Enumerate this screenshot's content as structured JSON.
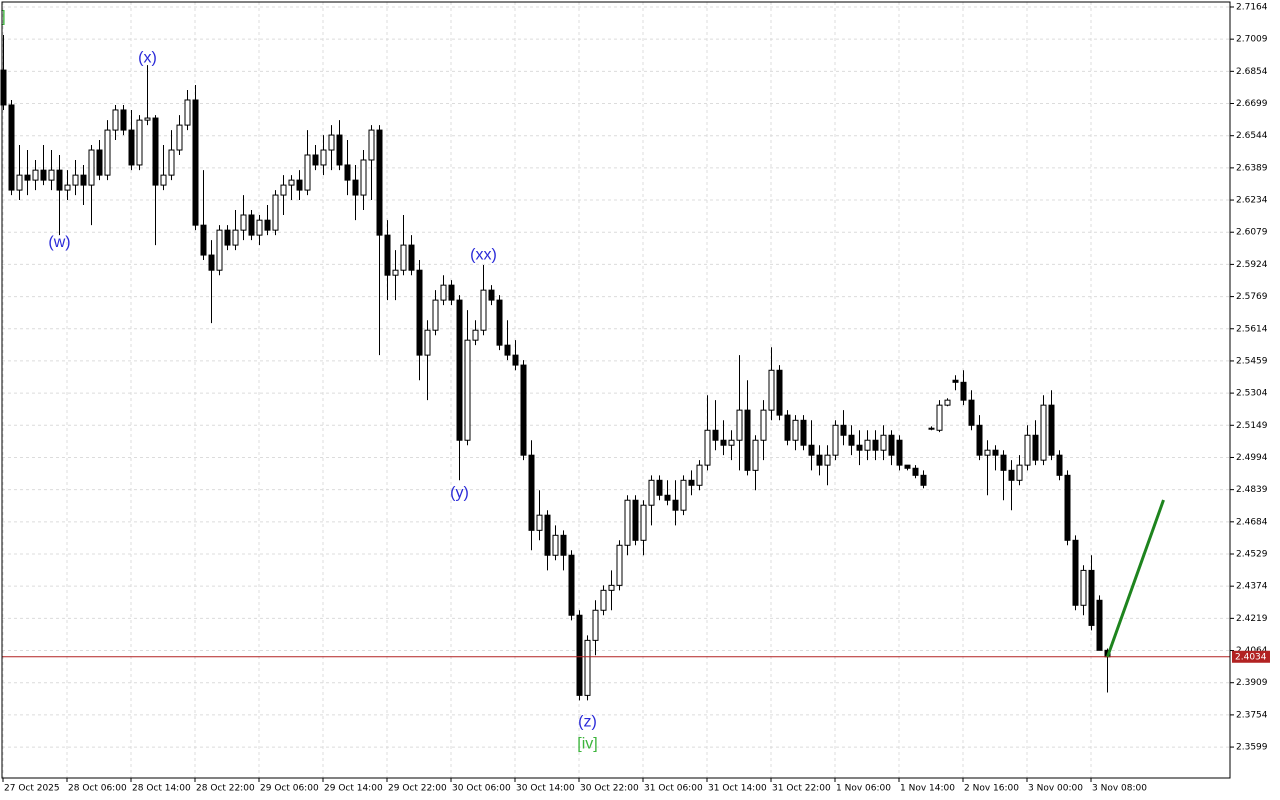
{
  "chart_data": {
    "type": "candlestick",
    "categories": [
      "27 Oct 2025",
      null,
      null,
      null,
      null,
      null,
      null,
      null,
      "28 Oct 06:00",
      null,
      null,
      null,
      null,
      null,
      null,
      null,
      "28 Oct 14:00",
      null,
      null,
      null,
      null,
      null,
      null,
      null,
      "28 Oct 22:00",
      null,
      null,
      null,
      null,
      null,
      null,
      null,
      "29 Oct 06:00",
      null,
      null,
      null,
      null,
      null,
      null,
      null,
      "29 Oct 14:00",
      null,
      null,
      null,
      null,
      null,
      null,
      null,
      "29 Oct 22:00",
      null,
      null,
      null,
      null,
      null,
      null,
      null,
      "30 Oct 06:00",
      null,
      null,
      null,
      null,
      null,
      null,
      null,
      "30 Oct 14:00",
      null,
      null,
      null,
      null,
      null,
      null,
      null,
      "30 Oct 22:00",
      null,
      null,
      null,
      null,
      null,
      null,
      null,
      "31 Oct 06:00",
      null,
      null,
      null,
      null,
      null,
      null,
      null,
      "31 Oct 14:00",
      null,
      null,
      null,
      null,
      null,
      null,
      null,
      "31 Oct 22:00",
      null,
      null,
      null,
      null,
      null,
      null,
      null,
      "1 Nov 06:00",
      null,
      null,
      null,
      null,
      null,
      null,
      null,
      "1 Nov 14:00",
      null,
      null,
      null,
      null,
      null,
      null,
      null,
      "2 Nov 16:00",
      null,
      null,
      null,
      null,
      null,
      null,
      null,
      "3 Nov 00:00",
      null,
      null,
      null,
      null,
      null,
      null,
      null,
      "3 Nov 08:00",
      null,
      null
    ],
    "open": [
      2.686,
      2.6692,
      2.6282,
      2.6354,
      2.633,
      2.6378,
      2.633,
      2.6378,
      2.6282,
      2.6306,
      2.6354,
      2.6306,
      2.6475,
      2.6354,
      2.6571,
      2.6668,
      2.6571,
      2.6403,
      2.6619,
      2.6629,
      2.6306,
      2.6354,
      2.6475,
      2.6595,
      2.6716,
      2.6113,
      2.5969,
      2.5896,
      2.6089,
      2.6017,
      2.6089,
      2.6162,
      2.6065,
      2.6137,
      2.6089,
      2.6258,
      2.6306,
      2.633,
      2.6282,
      2.6451,
      2.6403,
      2.6475,
      2.6547,
      2.6403,
      2.633,
      2.6258,
      2.6427,
      2.6571,
      2.6065,
      2.5872,
      2.5896,
      2.6017,
      2.5896,
      2.5487,
      2.5607,
      2.5752,
      2.5824,
      2.5752,
      2.5077,
      2.5559,
      2.5607,
      2.58,
      2.5752,
      2.5535,
      2.5487,
      2.5439,
      2.5005,
      2.4643,
      2.4716,
      2.4523,
      2.4619,
      2.4523,
      2.4234,
      2.3848,
      2.4113,
      2.4258,
      2.4354,
      2.4378,
      2.4571,
      2.4788,
      2.4595,
      2.4764,
      2.4884,
      2.4812,
      2.4788,
      2.474,
      2.4884,
      2.486,
      2.4957,
      2.5125,
      2.5077,
      2.5053,
      2.5077,
      2.5222,
      2.4932,
      2.5077,
      2.5222,
      2.5414,
      2.5198,
      2.5077,
      2.5173,
      2.5053,
      2.5005,
      2.4957,
      2.5005,
      2.5149,
      2.5101,
      2.5053,
      2.5029,
      2.5077,
      2.5029,
      2.5101,
      2.5077,
      2.4957,
      2.4942,
      2.4908,
      2.5135,
      2.5125,
      2.5246,
      2.5366,
      2.5356,
      2.527,
      2.5149,
      2.5005,
      2.5029,
      2.5005,
      2.4932,
      2.4884,
      2.4957,
      2.5101,
      2.4981,
      2.5246,
      2.5005,
      2.4908,
      2.4595,
      2.4282,
      2.445,
      2.4306,
      2.4065
    ],
    "high": [
      2.7029,
      2.6716,
      2.6499,
      2.6475,
      2.6427,
      2.6499,
      2.6475,
      2.6451,
      2.6378,
      2.6427,
      2.6403,
      2.6499,
      2.6523,
      2.6619,
      2.6692,
      2.6692,
      2.6668,
      2.6643,
      2.6884,
      2.6643,
      2.6499,
      2.6571,
      2.6643,
      2.6764,
      2.6788,
      2.6378,
      2.6041,
      2.6113,
      2.6113,
      2.6186,
      2.6258,
      2.6186,
      2.6162,
      2.621,
      2.6282,
      2.6354,
      2.6354,
      2.6378,
      2.6571,
      2.6499,
      2.6547,
      2.6595,
      2.6619,
      2.6523,
      2.6403,
      2.6475,
      2.6595,
      2.6595,
      2.6137,
      2.5993,
      2.6162,
      2.6065,
      2.5945,
      2.5655,
      2.58,
      2.5872,
      2.5848,
      2.5776,
      2.5704,
      2.5655,
      2.5921,
      2.5824,
      2.5776,
      2.5655,
      2.5559,
      2.5463,
      2.5077,
      2.4836,
      2.474,
      2.4667,
      2.4643,
      2.4547,
      2.4258,
      2.4137,
      2.4306,
      2.4378,
      2.445,
      2.4595,
      2.4812,
      2.4812,
      2.4788,
      2.4908,
      2.4908,
      2.4884,
      2.4884,
      2.4908,
      2.4932,
      2.4981,
      2.5294,
      2.527,
      2.5173,
      2.5125,
      2.5487,
      2.5366,
      2.5101,
      2.527,
      2.5525,
      2.5439,
      2.5222,
      2.5198,
      2.5198,
      2.5173,
      2.5053,
      2.5053,
      2.5173,
      2.5222,
      2.5149,
      2.5125,
      2.5125,
      2.5125,
      2.5149,
      2.5125,
      2.5101,
      2.4957,
      2.4957,
      2.4932,
      2.5144,
      2.527,
      2.5279,
      2.539,
      2.5414,
      2.5318,
      2.5198,
      2.5077,
      2.5053,
      2.5029,
      2.4981,
      2.5005,
      2.5149,
      2.5173,
      2.5294,
      2.5318,
      2.5029,
      2.4932,
      2.4619,
      2.4475,
      2.4523,
      2.433,
      2.4074
    ],
    "low": [
      2.6668,
      2.6258,
      2.6234,
      2.6258,
      2.6282,
      2.6306,
      2.6282,
      2.6065,
      2.6234,
      2.6258,
      2.621,
      2.6113,
      2.633,
      2.633,
      2.6523,
      2.6547,
      2.6378,
      2.6378,
      2.6595,
      2.6017,
      2.6282,
      2.633,
      2.6451,
      2.6571,
      2.6089,
      2.5945,
      2.5641,
      2.5872,
      2.5993,
      2.5993,
      2.6041,
      2.6041,
      2.6017,
      2.6065,
      2.6065,
      2.6162,
      2.6234,
      2.6234,
      2.6258,
      2.6378,
      2.6354,
      2.6378,
      2.6378,
      2.6258,
      2.6137,
      2.6186,
      2.6234,
      2.5487,
      2.5752,
      2.5752,
      2.5872,
      2.5872,
      2.5366,
      2.527,
      2.5583,
      2.5728,
      2.5728,
      2.4884,
      2.5053,
      2.5535,
      2.5583,
      2.5728,
      2.5511,
      2.5463,
      2.5414,
      2.4981,
      2.4547,
      2.4595,
      2.445,
      2.4499,
      2.445,
      2.4209,
      2.3824,
      2.3824,
      2.4041,
      2.4234,
      2.4258,
      2.4354,
      2.4523,
      2.4571,
      2.4523,
      2.4667,
      2.4788,
      2.4764,
      2.4667,
      2.4716,
      2.4812,
      2.4836,
      2.4932,
      2.5029,
      2.5005,
      2.4981,
      2.4932,
      2.4908,
      2.4836,
      2.4981,
      2.5173,
      2.5173,
      2.5053,
      2.5029,
      2.5029,
      2.4932,
      2.4908,
      2.486,
      2.4981,
      2.5053,
      2.5005,
      2.4957,
      2.4981,
      2.4981,
      2.4981,
      2.4957,
      2.4932,
      2.4932,
      2.4894,
      2.4846,
      2.5125,
      2.5116,
      2.5241,
      2.5318,
      2.5246,
      2.5125,
      2.4981,
      2.4812,
      2.4932,
      2.4788,
      2.474,
      2.486,
      2.4932,
      2.4957,
      2.4957,
      2.4981,
      2.4884,
      2.4571,
      2.4258,
      2.4234,
      2.4161,
      2.4065,
      2.3862
    ],
    "close": [
      2.6692,
      2.6282,
      2.6354,
      2.633,
      2.6378,
      2.633,
      2.6378,
      2.6282,
      2.6306,
      2.6354,
      2.6306,
      2.6475,
      2.6354,
      2.6571,
      2.6668,
      2.6571,
      2.6403,
      2.6619,
      2.6629,
      2.6306,
      2.6354,
      2.6475,
      2.6595,
      2.6716,
      2.6113,
      2.5969,
      2.5896,
      2.6089,
      2.6017,
      2.6089,
      2.6162,
      2.6065,
      2.6137,
      2.6089,
      2.6258,
      2.6306,
      2.633,
      2.6282,
      2.6451,
      2.6403,
      2.6475,
      2.6547,
      2.6403,
      2.633,
      2.6258,
      2.6427,
      2.6571,
      2.6065,
      2.5872,
      2.5896,
      2.6017,
      2.5896,
      2.5487,
      2.5607,
      2.5752,
      2.5824,
      2.5752,
      2.5077,
      2.5559,
      2.5607,
      2.58,
      2.5752,
      2.5535,
      2.5487,
      2.5439,
      2.5005,
      2.4643,
      2.4716,
      2.4523,
      2.4619,
      2.4523,
      2.4234,
      2.3848,
      2.4113,
      2.4258,
      2.4354,
      2.4378,
      2.4571,
      2.4788,
      2.4595,
      2.4764,
      2.4884,
      2.4812,
      2.4788,
      2.474,
      2.4884,
      2.486,
      2.4957,
      2.5125,
      2.5077,
      2.5053,
      2.5077,
      2.5222,
      2.4932,
      2.5077,
      2.5222,
      2.5414,
      2.5198,
      2.5077,
      2.5173,
      2.5053,
      2.5005,
      2.4957,
      2.5005,
      2.5149,
      2.5101,
      2.5053,
      2.5029,
      2.5077,
      2.5029,
      2.5101,
      2.5005,
      2.4957,
      2.4942,
      2.4908,
      2.486,
      2.513,
      2.5246,
      2.527,
      2.5356,
      2.527,
      2.5149,
      2.5005,
      2.5029,
      2.5005,
      2.4932,
      2.4884,
      2.4957,
      2.5101,
      2.4981,
      2.5246,
      2.5005,
      2.4908,
      2.4595,
      2.4282,
      2.445,
      2.4185,
      2.4065,
      2.4034
    ],
    "up_color": "#ffffff",
    "down_color": "#000000",
    "ylim": [
      2.345,
      2.7188
    ],
    "yticks": [
      2.7164,
      2.7009,
      2.6854,
      2.6699,
      2.6544,
      2.6389,
      2.6234,
      2.6079,
      2.5924,
      2.5769,
      2.5614,
      2.5459,
      2.5304,
      2.5149,
      2.4994,
      2.4839,
      2.4684,
      2.4529,
      2.4374,
      2.4219,
      2.4064,
      2.3909,
      2.3754,
      2.3599
    ],
    "grid": true,
    "current_price": {
      "value": 2.4034,
      "color": "#b22222"
    },
    "forecast": {
      "x": [
        138,
        145
      ],
      "y": [
        2.4034,
        2.4789
      ],
      "color": "#1e841e"
    },
    "annotations": [
      {
        "text": "]",
        "x": 0,
        "y": 2.7115,
        "color": "#3cb43c"
      },
      {
        "text": "(w)",
        "x": 7,
        "y": 2.6027,
        "color": "#2a2ad8"
      },
      {
        "text": "(x)",
        "x": 18,
        "y": 2.6918,
        "color": "#2a2ad8"
      },
      {
        "text": "(y)",
        "x": 57,
        "y": 2.4822,
        "color": "#2a2ad8"
      },
      {
        "text": "(xx)",
        "x": 60,
        "y": 2.5969,
        "color": "#2a2ad8"
      },
      {
        "text": "(z)",
        "x": 73,
        "y": 2.3719,
        "color": "#2a2ad8"
      },
      {
        "text": "[iv]",
        "x": 73,
        "y": 2.3613,
        "color": "#3cb43c"
      }
    ]
  }
}
